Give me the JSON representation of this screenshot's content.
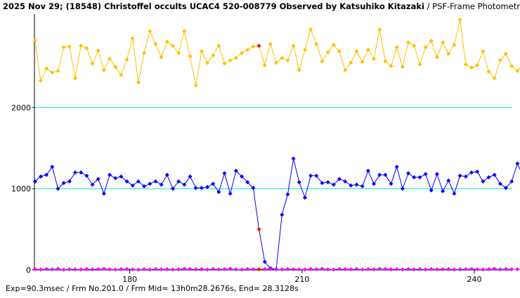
{
  "header": {
    "title_bold": "2025 Nov 29; (18548) Christoffel occults UCAC4 520-008779 Observed by Katsuhiko Kitazaki",
    "title_suffix": " / PSF-Frame Photometry /"
  },
  "footer": {
    "text": "Exp=90.3msec / Frm No.201.0 / Frm Mid= 13h0m28.2676s,  End= 28.3128s"
  },
  "colors": {
    "axis": "#000000",
    "grid": "#00dcdc",
    "comparison": "#ffc000",
    "target": "#0000ff",
    "event": "#ff0000",
    "background_star": "#ff00ff",
    "background_line": "#6060ff"
  },
  "chart_data": {
    "type": "scatter",
    "xlabel": "",
    "ylabel": "",
    "xlim": [
      163.4,
      246.6
    ],
    "ylim": [
      0,
      3150
    ],
    "x_ticks": [
      180,
      210,
      240
    ],
    "y_ticks": [
      0,
      1000,
      2000
    ],
    "y_gridlines": [
      1000,
      2000
    ],
    "x_start": 163.5,
    "x_step": 1,
    "series": [
      {
        "role": "comparison",
        "connected": true,
        "values": [
          2830,
          2330,
          2480,
          2430,
          2450,
          2740,
          2750,
          2360,
          2760,
          2730,
          2540,
          2700,
          2460,
          2600,
          2500,
          2400,
          2590,
          2850,
          2310,
          2670,
          2940,
          2780,
          2620,
          2810,
          2760,
          2670,
          2940,
          2630,
          2270,
          2690,
          2550,
          2640,
          2760,
          2540,
          2580,
          2610,
          2670,
          2710,
          2750,
          2760,
          2520,
          2780,
          2550,
          2610,
          2580,
          2760,
          2460,
          2710,
          2960,
          2780,
          2570,
          2680,
          2770,
          2690,
          2460,
          2550,
          2690,
          2560,
          2710,
          2600,
          2960,
          2570,
          2510,
          2740,
          2500,
          2800,
          2760,
          2530,
          2740,
          2820,
          2620,
          2800,
          2660,
          2770,
          3080,
          2530,
          2490,
          2520,
          2690,
          2440,
          2360,
          2580,
          2660,
          2510,
          2450,
          2540
        ]
      },
      {
        "role": "target",
        "connected": true,
        "values": [
          1090,
          1150,
          1170,
          1270,
          1000,
          1070,
          1090,
          1200,
          1200,
          1160,
          1050,
          1120,
          940,
          1170,
          1130,
          1150,
          1090,
          1040,
          1090,
          1030,
          1060,
          1090,
          1050,
          1170,
          1000,
          1090,
          1050,
          1150,
          1010,
          1010,
          1020,
          1060,
          960,
          1190,
          940,
          1220,
          1150,
          1080,
          1010,
          500,
          100,
          20,
          10,
          680,
          930,
          1370,
          1080,
          890,
          1160,
          1160,
          1070,
          1080,
          1050,
          1120,
          1090,
          1040,
          1050,
          1030,
          1220,
          1060,
          1170,
          1170,
          1060,
          1270,
          1000,
          1190,
          1140,
          1140,
          1180,
          980,
          1180,
          970,
          1100,
          940,
          1160,
          1150,
          1200,
          1210,
          1090,
          1140,
          1170,
          1060,
          1010,
          1090,
          1310,
          1150
        ]
      },
      {
        "role": "background",
        "connected": true,
        "values": [
          10,
          5,
          12,
          8,
          15,
          3,
          10,
          8,
          5,
          12,
          8,
          10,
          15,
          8,
          5,
          10,
          12,
          8,
          3,
          10,
          5,
          12,
          8,
          10,
          5,
          8,
          15,
          12,
          8,
          10,
          5,
          12,
          8,
          10,
          15,
          8,
          5,
          12,
          10,
          8,
          12,
          10,
          5,
          8,
          12,
          10,
          8,
          5,
          12,
          10,
          15,
          8,
          5,
          12,
          10,
          8,
          12,
          5,
          10,
          8,
          15,
          12,
          8,
          10,
          5,
          12,
          8,
          10,
          5,
          12,
          8,
          10,
          12,
          5,
          8,
          10,
          12,
          8,
          5,
          10,
          15,
          8,
          12,
          10,
          8,
          12
        ]
      }
    ],
    "highlight_index": 39,
    "highlight_series": [
      "comparison",
      "target",
      "background"
    ]
  }
}
